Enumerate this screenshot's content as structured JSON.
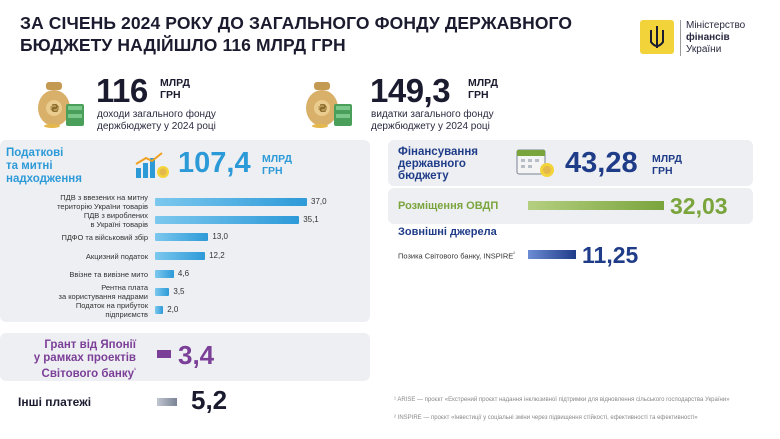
{
  "header": {
    "title": "ЗА СІЧЕНЬ 2024 РОКУ ДО ЗАГАЛЬНОГО ФОНДУ ДЕРЖАВНОГО БЮДЖЕТУ НАДІЙШЛО 116 МЛРД ГРН",
    "logo_line1": "Міністерство",
    "logo_line2": "фінансів",
    "logo_line3": "України"
  },
  "summary": {
    "income_value": "116",
    "income_unit1": "МЛРД",
    "income_unit2": "ГРН",
    "income_caption1": "доходи загального фонду",
    "income_caption2": "держбюджету у 2024 році",
    "expense_value": "149,3",
    "expense_unit1": "МЛРД",
    "expense_unit2": "ГРН",
    "expense_caption1": "видатки загального фонду",
    "expense_caption2": "держбюджету у 2024 році"
  },
  "taxes": {
    "title1": "Податкові",
    "title2": "та митні",
    "title3": "надходження",
    "value": "107,4",
    "unit1": "МЛРД",
    "unit2": "ГРН"
  },
  "chart_data": {
    "type": "bar",
    "orientation": "horizontal",
    "title": "Податкові та митні надходження",
    "unit": "млрд грн",
    "categories": [
      "ПДВ з ввезених на митну територію України товарів",
      "ПДВ з вироблених в Україні товарів",
      "ПДФО та військовий збір",
      "Акцизний податок",
      "Ввізне та вивізне мито",
      "Рентна плата за користування надрами",
      "Податок на прибуток підприємств"
    ],
    "label_lines": [
      [
        "ПДВ з ввезених на митну",
        "територію України товарів"
      ],
      [
        "ПДВ з вироблених",
        "в Україні товарів"
      ],
      [
        "ПДФО та військовий збір"
      ],
      [
        "Акцизний податок"
      ],
      [
        "Ввізне та вивізне мито"
      ],
      [
        "Рентна плата",
        "за користування надрами"
      ],
      [
        "Податок на прибуток",
        "підприємств"
      ]
    ],
    "values": [
      37.0,
      35.1,
      13.0,
      12.2,
      4.6,
      3.5,
      2.0
    ],
    "value_labels": [
      "37,0",
      "35,1",
      "13,0",
      "12,2",
      "4,6",
      "3,5",
      "2,0"
    ],
    "xlim": [
      0,
      37
    ]
  },
  "grant": {
    "title1": "Грант від Японії",
    "title2": "у рамках проектів",
    "title3": "Світового банку",
    "footnote_mark": "¹",
    "value": "3,4"
  },
  "other": {
    "title": "Інші платежі",
    "value": "5,2"
  },
  "financing": {
    "title1": "Фінансування",
    "title2": "державного",
    "title3": "бюджету",
    "value": "43,28",
    "unit1": "МЛРД",
    "unit2": "ГРН",
    "ovdp_label": "Розміщення ОВДП",
    "ovdp_value": "32,03",
    "ext_label": "Зовнішні джерела",
    "wb_label": "Позика Світового банку, INSPIRE",
    "wb_mark": "²",
    "wb_value": "11,25"
  },
  "footnotes": {
    "fn1": "¹ ARISE — проєкт «Екстрений проєкт надання інклюзивної підтримки для відновлення сільського господарства України»",
    "fn2": "² INSPIRE — проєкт «Інвестиції у соціальні зміни через підвищення стійкості, ефективності та ефективності»"
  },
  "colors": {
    "blue": "#2d9ad8",
    "navy": "#1f3c88",
    "green": "#7aa43c",
    "purple": "#7b3f98",
    "yellow": "#f2d43a"
  }
}
